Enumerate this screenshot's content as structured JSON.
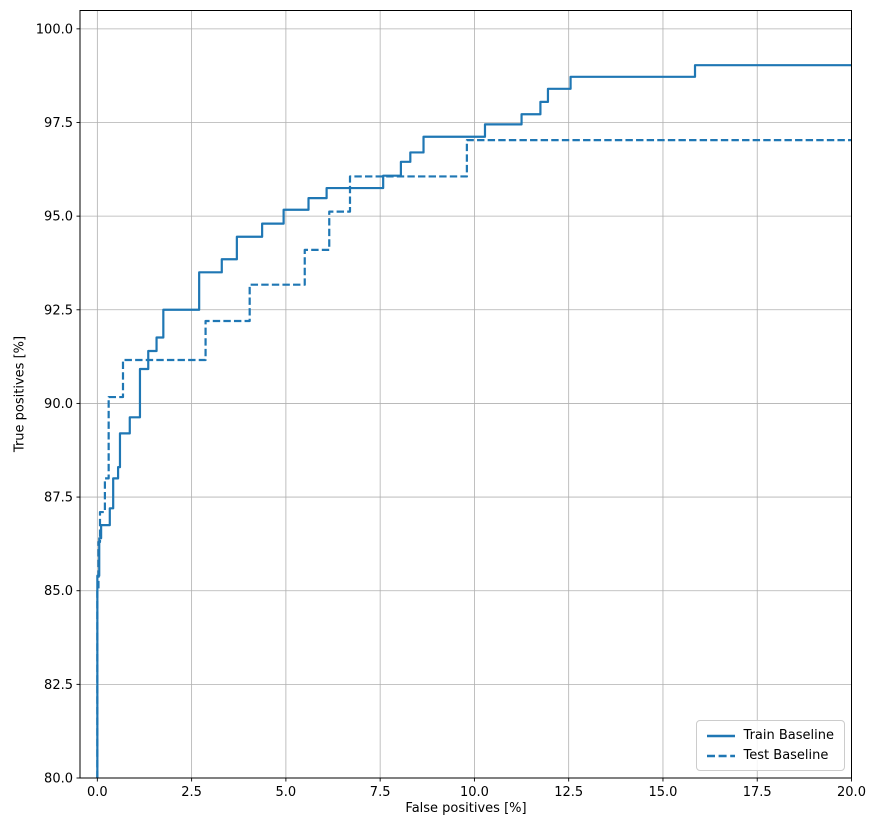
{
  "chart_data": {
    "type": "line",
    "title": "",
    "xlabel": "False positives [%]",
    "ylabel": "True positives [%]",
    "xlim": [
      -0.46,
      20.0
    ],
    "ylim": [
      80.0,
      100.49
    ],
    "xticks": [
      0.0,
      2.5,
      5.0,
      7.5,
      10.0,
      12.5,
      15.0,
      17.5,
      20.0
    ],
    "yticks": [
      80.0,
      82.5,
      85.0,
      87.5,
      90.0,
      92.5,
      95.0,
      97.5,
      100.0
    ],
    "tick_label_decimals": 1,
    "grid": true,
    "grid_color": "#b0b0b0",
    "axis_color": "#000000",
    "line_color": "#1f77b4",
    "legend_position": "lower right",
    "series": [
      {
        "name": "Train Baseline",
        "line_style": "solid",
        "points": [
          [
            0.0,
            80.0
          ],
          [
            0.0,
            85.4
          ],
          [
            0.05,
            85.4
          ],
          [
            0.05,
            86.4
          ],
          [
            0.1,
            86.4
          ],
          [
            0.1,
            86.75
          ],
          [
            0.33,
            86.75
          ],
          [
            0.33,
            87.2
          ],
          [
            0.42,
            87.2
          ],
          [
            0.42,
            88.0
          ],
          [
            0.55,
            88.0
          ],
          [
            0.55,
            88.3
          ],
          [
            0.6,
            88.3
          ],
          [
            0.6,
            89.2
          ],
          [
            0.86,
            89.2
          ],
          [
            0.86,
            89.63
          ],
          [
            1.13,
            89.63
          ],
          [
            1.13,
            90.92
          ],
          [
            1.35,
            90.92
          ],
          [
            1.35,
            91.4
          ],
          [
            1.57,
            91.4
          ],
          [
            1.57,
            91.76
          ],
          [
            1.75,
            91.76
          ],
          [
            1.75,
            92.5
          ],
          [
            2.7,
            92.5
          ],
          [
            2.7,
            93.5
          ],
          [
            3.3,
            93.5
          ],
          [
            3.3,
            93.85
          ],
          [
            3.7,
            93.85
          ],
          [
            3.7,
            94.45
          ],
          [
            4.37,
            94.45
          ],
          [
            4.37,
            94.8
          ],
          [
            4.94,
            94.8
          ],
          [
            4.94,
            95.17
          ],
          [
            5.6,
            95.17
          ],
          [
            5.6,
            95.48
          ],
          [
            6.08,
            95.48
          ],
          [
            6.08,
            95.75
          ],
          [
            7.58,
            95.75
          ],
          [
            7.58,
            96.08
          ],
          [
            8.05,
            96.08
          ],
          [
            8.05,
            96.45
          ],
          [
            8.3,
            96.45
          ],
          [
            8.3,
            96.7
          ],
          [
            8.65,
            96.7
          ],
          [
            8.65,
            97.12
          ],
          [
            10.28,
            97.12
          ],
          [
            10.28,
            97.45
          ],
          [
            11.25,
            97.45
          ],
          [
            11.25,
            97.72
          ],
          [
            11.75,
            97.72
          ],
          [
            11.75,
            98.05
          ],
          [
            11.95,
            98.05
          ],
          [
            11.95,
            98.4
          ],
          [
            12.55,
            98.4
          ],
          [
            12.55,
            98.72
          ],
          [
            15.85,
            98.72
          ],
          [
            15.85,
            99.03
          ],
          [
            20.0,
            99.03
          ]
        ]
      },
      {
        "name": "Test Baseline",
        "line_style": "dashed",
        "points": [
          [
            0.0,
            80.0
          ],
          [
            0.0,
            85.0
          ],
          [
            0.03,
            85.0
          ],
          [
            0.03,
            86.3
          ],
          [
            0.07,
            86.3
          ],
          [
            0.07,
            87.1
          ],
          [
            0.2,
            87.1
          ],
          [
            0.2,
            88.0
          ],
          [
            0.3,
            88.0
          ],
          [
            0.3,
            90.17
          ],
          [
            0.68,
            90.17
          ],
          [
            0.68,
            91.16
          ],
          [
            2.87,
            91.16
          ],
          [
            2.87,
            92.2
          ],
          [
            4.04,
            92.2
          ],
          [
            4.04,
            93.17
          ],
          [
            5.5,
            93.17
          ],
          [
            5.5,
            94.1
          ],
          [
            6.15,
            94.1
          ],
          [
            6.15,
            95.12
          ],
          [
            6.7,
            95.12
          ],
          [
            6.7,
            96.06
          ],
          [
            9.8,
            96.06
          ],
          [
            9.8,
            97.03
          ],
          [
            20.0,
            97.03
          ]
        ]
      }
    ]
  },
  "legend": {
    "items": [
      {
        "label": "Train Baseline"
      },
      {
        "label": "Test Baseline"
      }
    ]
  }
}
